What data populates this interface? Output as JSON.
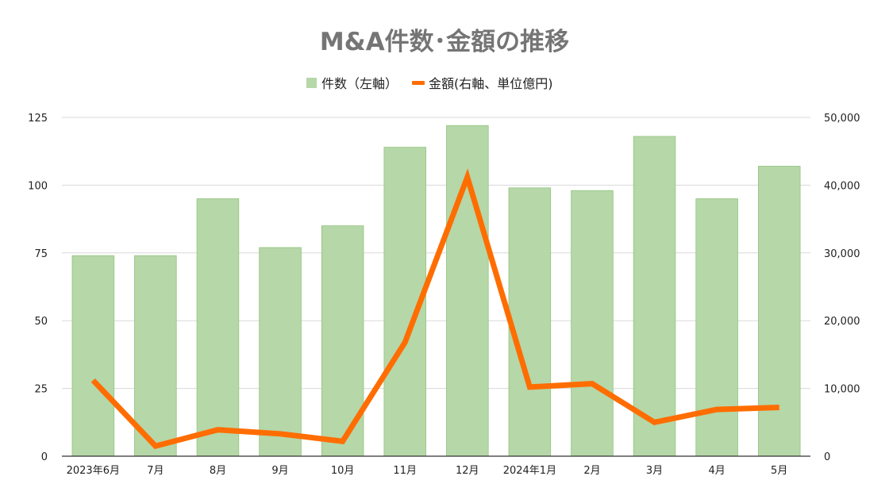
{
  "chart_data": {
    "type": "bar",
    "title": "M&A件数･金額の推移",
    "categories": [
      "2023年6月",
      "7月",
      "8月",
      "9月",
      "10月",
      "11月",
      "12月",
      "2024年1月",
      "2月",
      "3月",
      "4月",
      "5月"
    ],
    "series": [
      {
        "name": "件数（左軸）",
        "type": "bar",
        "axis": "left",
        "color": "#b6d7a8",
        "values": [
          74,
          74,
          95,
          77,
          85,
          114,
          122,
          99,
          98,
          118,
          95,
          107
        ]
      },
      {
        "name": "金額(右軸、単位億円)",
        "type": "line",
        "axis": "right",
        "color": "#ff6d00",
        "values": [
          11200,
          1500,
          3900,
          3300,
          2200,
          16800,
          41200,
          10200,
          10700,
          5000,
          6900,
          7200
        ]
      }
    ],
    "y_left": {
      "range": [
        0,
        125
      ],
      "ticks": [
        "0",
        "25",
        "50",
        "75",
        "100",
        "125"
      ]
    },
    "y_right": {
      "range": [
        0,
        50000
      ],
      "ticks": [
        "0",
        "10,000",
        "20,000",
        "30,000",
        "40,000",
        "50,000"
      ]
    },
    "grid": true,
    "legend_position": "top-center",
    "xlabel": "",
    "ylabel": ""
  }
}
